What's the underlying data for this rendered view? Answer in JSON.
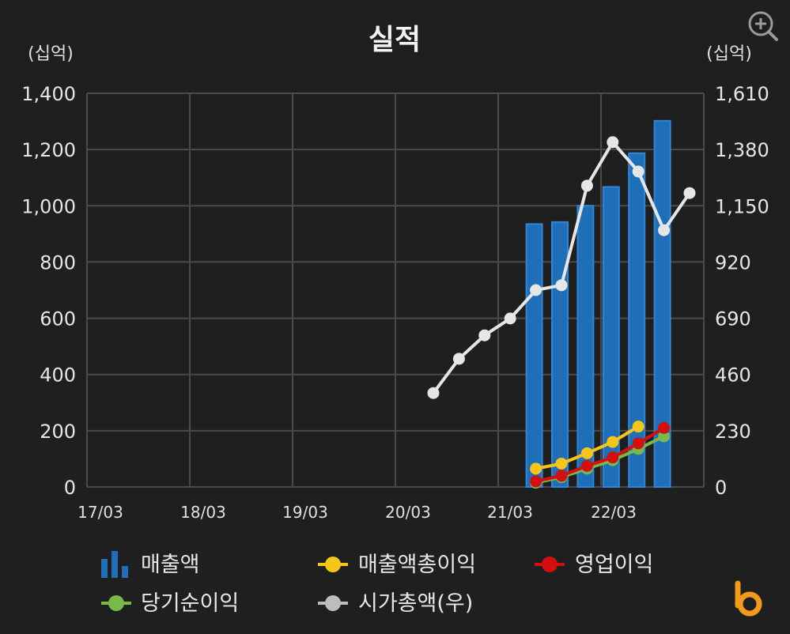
{
  "chart_data": {
    "type": "bar+line",
    "title": "실적",
    "left_unit": "(십억)",
    "right_unit": "(십억)",
    "x_tick_labels": [
      "17/03",
      "18/03",
      "19/03",
      "20/03",
      "21/03",
      "22/03"
    ],
    "ylim_left": [
      0,
      1400
    ],
    "yticks_left": [
      "0",
      "200",
      "400",
      "600",
      "800",
      "1,000",
      "1,200",
      "1,400"
    ],
    "ylim_right": [
      0,
      1610
    ],
    "yticks_right": [
      "0",
      "230",
      "460",
      "690",
      "920",
      "1,150",
      "1,380",
      "1,610"
    ],
    "grid": true,
    "legend_position": "bottom",
    "x": [
      "20/06",
      "20/09",
      "20/12",
      "21/03",
      "21/06",
      "21/09",
      "21/12",
      "22/03",
      "22/06",
      "22/09",
      "22/12"
    ],
    "series": [
      {
        "name": "매출액",
        "type": "bar",
        "axis": "left",
        "color": "#1f6fb8",
        "values": [
          null,
          null,
          null,
          null,
          935,
          942,
          1000,
          1067,
          1187,
          1302,
          null
        ]
      },
      {
        "name": "매출액총이익",
        "type": "line",
        "axis": "left",
        "color": "#f5c518",
        "values": [
          null,
          null,
          null,
          null,
          65,
          83,
          120,
          160,
          215,
          null,
          null
        ]
      },
      {
        "name": "영업이익",
        "type": "line",
        "axis": "left",
        "color": "#d40f0f",
        "values": [
          null,
          null,
          null,
          null,
          20,
          40,
          75,
          105,
          155,
          210,
          null
        ]
      },
      {
        "name": "당기순이익",
        "type": "line",
        "axis": "left",
        "color": "#79b94a",
        "values": [
          null,
          null,
          null,
          null,
          15,
          35,
          65,
          95,
          135,
          180,
          null
        ]
      },
      {
        "name": "시가총액(우)",
        "type": "line",
        "axis": "right",
        "color": "#e6e6e6",
        "values": [
          384,
          524,
          620,
          689,
          805,
          825,
          1232,
          1410,
          1290,
          1050,
          1202
        ]
      }
    ]
  }
}
